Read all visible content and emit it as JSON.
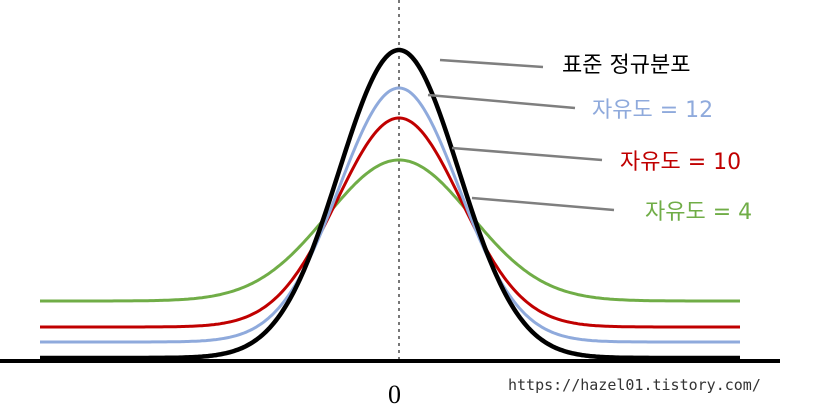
{
  "curves": [
    {
      "id": "normal",
      "label": "표준 정규분포",
      "color": "#000000"
    },
    {
      "id": "df12",
      "label": "자유도 = 12",
      "color": "#8faadc"
    },
    {
      "id": "df10",
      "label": "자유도 = 10",
      "color": "#c00000"
    },
    {
      "id": "df4",
      "label": "자유도 = 4",
      "color": "#70ad47"
    }
  ],
  "axis": {
    "zero_label": "0"
  },
  "watermark": "https://hazel01.tistory.com/"
}
